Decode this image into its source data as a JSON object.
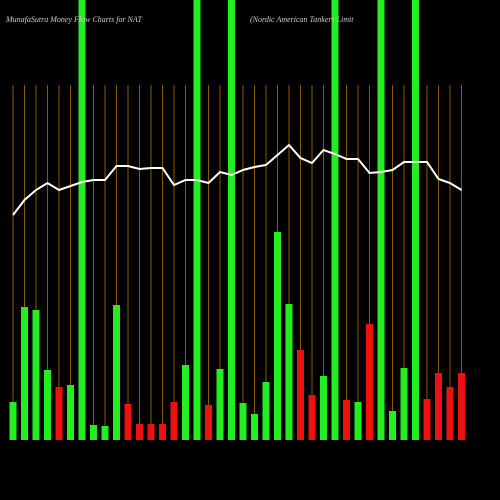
{
  "chart_data": {
    "type": "bar",
    "title": "MunafaSutra  Money Flow  Charts for NAT",
    "subtitle": "(Nordic American  Tankers Limit",
    "background": "#000000",
    "categories": [
      null,
      null,
      null,
      null,
      null,
      null,
      null,
      null,
      null,
      null,
      null,
      null,
      null,
      null,
      null,
      null,
      null,
      null,
      null,
      null,
      null,
      null,
      null,
      null,
      null,
      null,
      null,
      null,
      null,
      null,
      null,
      null,
      null,
      null,
      null,
      null,
      null,
      null,
      null,
      null
    ],
    "values": [
      38,
      133,
      130,
      70,
      53,
      55,
      440,
      15,
      14,
      135,
      36,
      16,
      16,
      16,
      38,
      75,
      440,
      35,
      71,
      440,
      37,
      26,
      58,
      208,
      136,
      90,
      45,
      64,
      440,
      40,
      38,
      116,
      440,
      29,
      72,
      440,
      41,
      67,
      53,
      67
    ],
    "colors": [
      "#22ee22",
      "#22ee22",
      "#22ee22",
      "#22ee22",
      "#ee1111",
      "#22ee22",
      "#22ee22",
      "#22ee22",
      "#22ee22",
      "#22ee22",
      "#ee1111",
      "#ee1111",
      "#ee1111",
      "#ee1111",
      "#ee1111",
      "#22ee22",
      "#22ee22",
      "#ee1111",
      "#22ee22",
      "#22ee22",
      "#22ee22",
      "#22ee22",
      "#22ee22",
      "#22ee22",
      "#22ee22",
      "#ee1111",
      "#ee1111",
      "#22ee22",
      "#22ee22",
      "#ee1111",
      "#22ee22",
      "#ee1111",
      "#22ee22",
      "#22ee22",
      "#22ee22",
      "#22ee22",
      "#ee1111",
      "#ee1111",
      "#ee1111",
      "#ee1111"
    ],
    "line": {
      "color": "#ffffff",
      "values": [
        225,
        240,
        250,
        257,
        250,
        254,
        258,
        260,
        260,
        274,
        274,
        271,
        272,
        272,
        255,
        260,
        260,
        257,
        268,
        265,
        270,
        273,
        275,
        285,
        295,
        282,
        277,
        290,
        286,
        281,
        281,
        267,
        268,
        270,
        278,
        278,
        278,
        261,
        257,
        250
      ]
    },
    "ylim": [
      0,
      440
    ]
  }
}
